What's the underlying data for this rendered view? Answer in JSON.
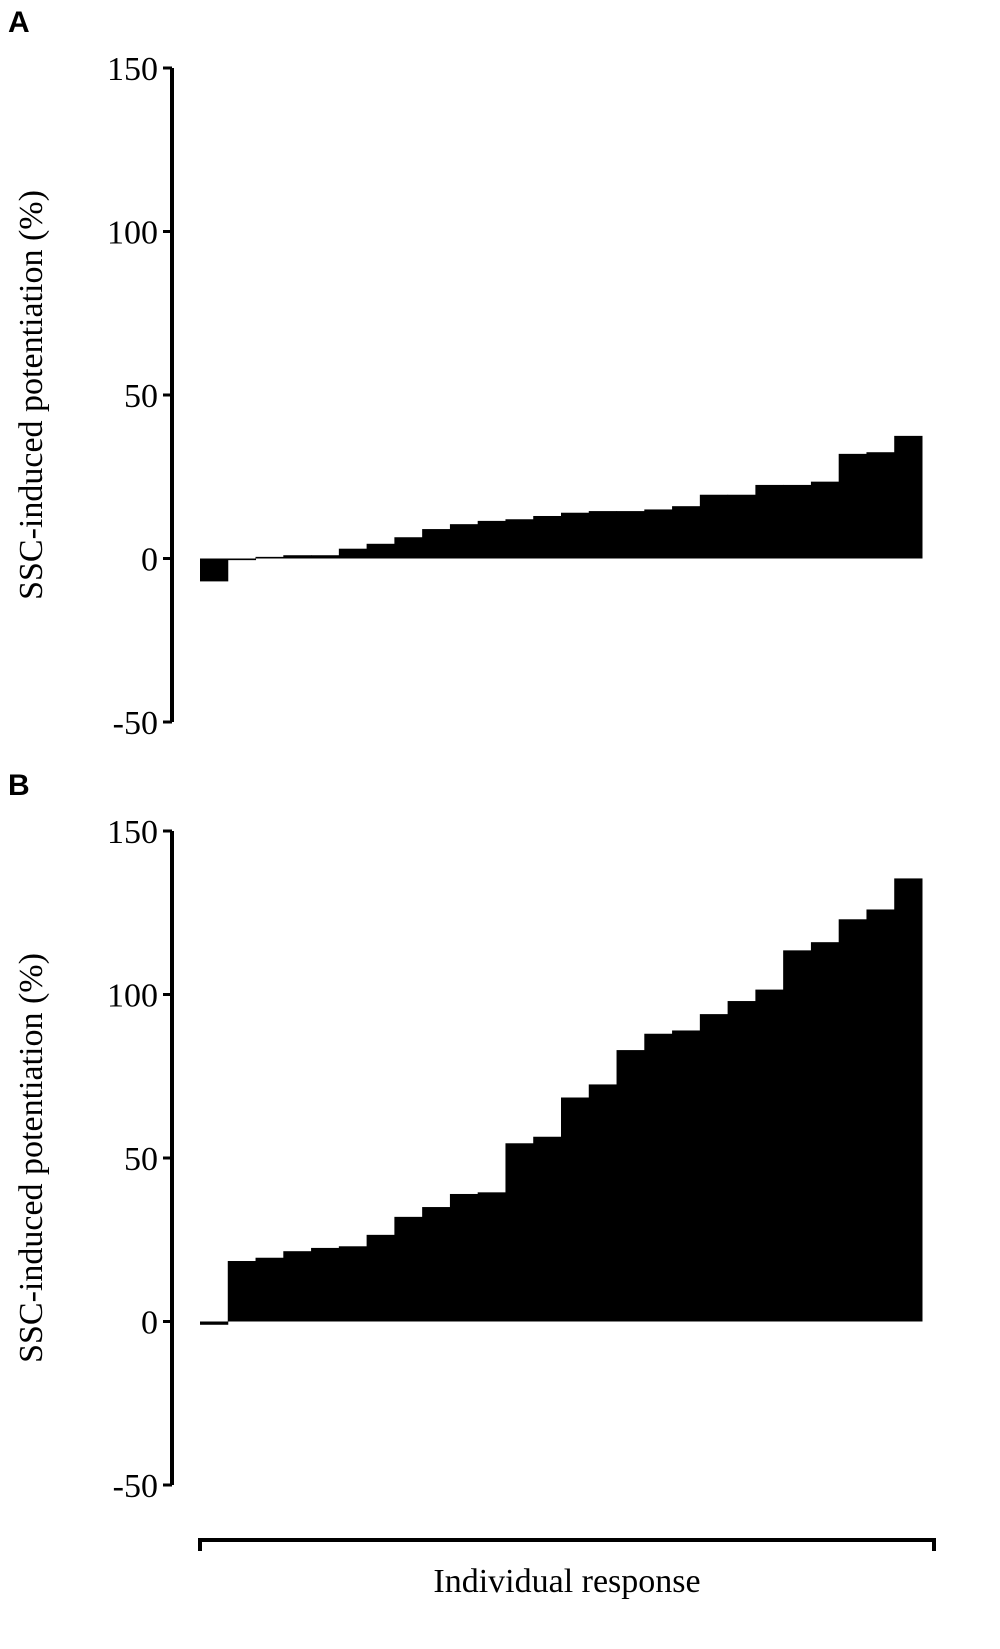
{
  "chart_data": [
    {
      "type": "bar",
      "panel": "A",
      "ylabel": "SSC-induced potentiation (%)",
      "color": "#000000",
      "values": [
        -7,
        -0.5,
        0.5,
        1,
        1,
        3,
        4.5,
        6.5,
        9,
        10.5,
        11.5,
        12,
        13,
        14,
        14.5,
        14.5,
        15,
        16,
        19.5,
        19.5,
        22.5,
        22.5,
        23.5,
        32,
        32.5,
        37.5
      ],
      "ylim": [
        -50,
        150
      ],
      "yticks": [
        -50,
        0,
        50,
        100,
        150
      ]
    },
    {
      "type": "bar",
      "panel": "B",
      "ylabel": "SSC-induced potentiation (%)",
      "xlabel": "Individual response",
      "color": "#000000",
      "values": [
        -1,
        18.5,
        19.5,
        21.5,
        22.5,
        23,
        26.5,
        32,
        35,
        39,
        39.5,
        54.5,
        56.5,
        68.5,
        72.5,
        83,
        88,
        89,
        94,
        98,
        101.5,
        113.5,
        116,
        123,
        126,
        135.5
      ],
      "ylim": [
        -50,
        150
      ],
      "yticks": [
        -50,
        0,
        50,
        100,
        150
      ]
    }
  ]
}
